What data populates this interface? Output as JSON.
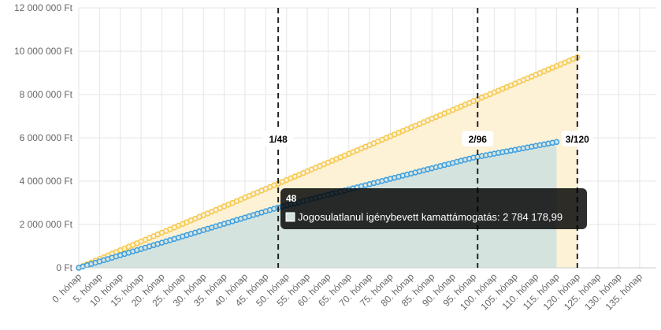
{
  "chart_data": {
    "type": "line",
    "categories": [
      "0. hónap",
      null,
      null,
      null,
      null,
      "5. hónap",
      null,
      null,
      null,
      null,
      "10. hónap",
      null,
      null,
      null,
      null,
      "15. hónap",
      null,
      null,
      null,
      null,
      "20. hónap",
      null,
      null,
      null,
      null,
      "25. hónap",
      null,
      null,
      null,
      null,
      "30. hónap",
      null,
      null,
      null,
      null,
      "35. hónap",
      null,
      null,
      null,
      null,
      "40. hónap",
      null,
      null,
      null,
      null,
      "45. hónap",
      null,
      null,
      null,
      null,
      "50. hónap",
      null,
      null,
      null,
      null,
      "55. hónap",
      null,
      null,
      null,
      null,
      "60. hónap",
      null,
      null,
      null,
      null,
      "65. hónap",
      null,
      null,
      null,
      null,
      "70. hónap",
      null,
      null,
      null,
      null,
      "75. hónap",
      null,
      null,
      null,
      null,
      "80. hónap",
      null,
      null,
      null,
      null,
      "85. hónap",
      null,
      null,
      null,
      null,
      "90. hónap",
      null,
      null,
      null,
      null,
      "95. hónap",
      null,
      null,
      null,
      null,
      "100. hónap",
      null,
      null,
      null,
      null,
      "105. hónap",
      null,
      null,
      null,
      null,
      "110. hónap",
      null,
      null,
      null,
      null,
      "115. hónap",
      null,
      null,
      null,
      null,
      "120. hónap",
      null,
      null,
      null,
      null,
      "125. hónap",
      null,
      null,
      null,
      null,
      "130. hónap",
      null,
      null,
      null,
      null,
      "135. hónap",
      null,
      null,
      null,
      null
    ],
    "series": [
      {
        "color": "#f5c84a",
        "fill": "#fdf1d6",
        "values": [
          0,
          81000,
          162000,
          243000,
          324000,
          405000,
          486000,
          567000,
          648000,
          729000,
          810000,
          891000,
          972000,
          1053000,
          1134000,
          1215000,
          1296000,
          1377000,
          1458000,
          1539000,
          1620000,
          1701000,
          1782000,
          1863000,
          1944000,
          2025000,
          2106000,
          2187000,
          2268000,
          2349000,
          2430000,
          2511000,
          2592000,
          2673000,
          2754000,
          2835000,
          2916000,
          2997000,
          3078000,
          3159000,
          3240000,
          3321000,
          3402000,
          3483000,
          3564000,
          3645000,
          3726000,
          3807000,
          3888000,
          3969000,
          4050000,
          4131000,
          4212000,
          4293000,
          4374000,
          4455000,
          4536000,
          4617000,
          4698000,
          4779000,
          4860000,
          4941000,
          5022000,
          5103000,
          5184000,
          5265000,
          5346000,
          5427000,
          5508000,
          5589000,
          5670000,
          5751000,
          5832000,
          5913000,
          5994000,
          6075000,
          6156000,
          6237000,
          6318000,
          6399000,
          6480000,
          6561000,
          6642000,
          6723000,
          6804000,
          6885000,
          6966000,
          7047000,
          7128000,
          7209000,
          7290000,
          7371000,
          7452000,
          7533000,
          7614000,
          7695000,
          7776000,
          7857000,
          7938000,
          8019000,
          8100000,
          8181000,
          8262000,
          8343000,
          8424000,
          8505000,
          8586000,
          8667000,
          8748000,
          8829000,
          8910000,
          8991000,
          9072000,
          9153000,
          9234000,
          9315000,
          9396000,
          9477000,
          9558000,
          9639000,
          9720000,
          null,
          null,
          null,
          null,
          null,
          null,
          null,
          null,
          null,
          null,
          null,
          null,
          null,
          null,
          null,
          null,
          null,
          null,
          null
        ]
      },
      {
        "name": "Jogosulatlanul igénybevett kamattámogatás",
        "color": "#3a9ee0",
        "fill": "#d5e3df",
        "values": [
          0,
          58000,
          116000,
          174000,
          232000,
          290000,
          348000,
          406000,
          464000,
          522000,
          580000,
          638000,
          696000,
          754000,
          812000,
          870000,
          928000,
          986000,
          1044000,
          1102000,
          1160000,
          1218000,
          1276000,
          1334000,
          1392000,
          1450000,
          1508000,
          1566000,
          1624000,
          1682000,
          1740000,
          1798000,
          1856000,
          1914000,
          1972000,
          2030000,
          2088000,
          2146000,
          2204000,
          2262000,
          2320000,
          2378000,
          2436000,
          2494000,
          2552000,
          2610000,
          2668000,
          2726000,
          2784178.99,
          2833000,
          2882000,
          2931000,
          2980000,
          3029000,
          3078000,
          3127000,
          3176000,
          3225000,
          3274000,
          3323000,
          3372000,
          3421000,
          3470000,
          3519000,
          3568000,
          3617000,
          3666000,
          3715000,
          3764000,
          3813000,
          3862000,
          3911000,
          3960000,
          4009000,
          4058000,
          4107000,
          4156000,
          4205000,
          4254000,
          4303000,
          4352000,
          4401000,
          4450000,
          4499000,
          4548000,
          4597000,
          4646000,
          4695000,
          4744000,
          4793000,
          4842000,
          4891000,
          4940000,
          4989000,
          5038000,
          5087000,
          5123000,
          5159000,
          5195000,
          5231000,
          5267000,
          5303000,
          5339000,
          5375000,
          5411000,
          5447000,
          5483000,
          5519000,
          5555000,
          5591000,
          5627000,
          5663000,
          5699000,
          5735000,
          5771000,
          5807000,
          null,
          null,
          null,
          null,
          null,
          null,
          null,
          null,
          null,
          null,
          null,
          null,
          null,
          null,
          null,
          null,
          null,
          null,
          null,
          null,
          null,
          null,
          null,
          null
        ]
      }
    ],
    "ylim": [
      0,
      12000000
    ],
    "yticks": [
      {
        "value": 0,
        "label": "0 Ft"
      },
      {
        "value": 2000000,
        "label": "2 000 000 Ft"
      },
      {
        "value": 4000000,
        "label": "4 000 000 Ft"
      },
      {
        "value": 6000000,
        "label": "6 000 000 Ft"
      },
      {
        "value": 8000000,
        "label": "8 000 000 Ft"
      },
      {
        "value": 10000000,
        "label": "10 000 000 Ft"
      },
      {
        "value": 12000000,
        "label": "12 000 000 Ft"
      }
    ],
    "grid": true,
    "annotations": [
      {
        "x": 48,
        "label": "1/48"
      },
      {
        "x": 96,
        "label": "2/96"
      },
      {
        "x": 120,
        "label": "3/120"
      }
    ],
    "tooltip": {
      "title": "48",
      "value_label": "2 784 178,99"
    }
  }
}
